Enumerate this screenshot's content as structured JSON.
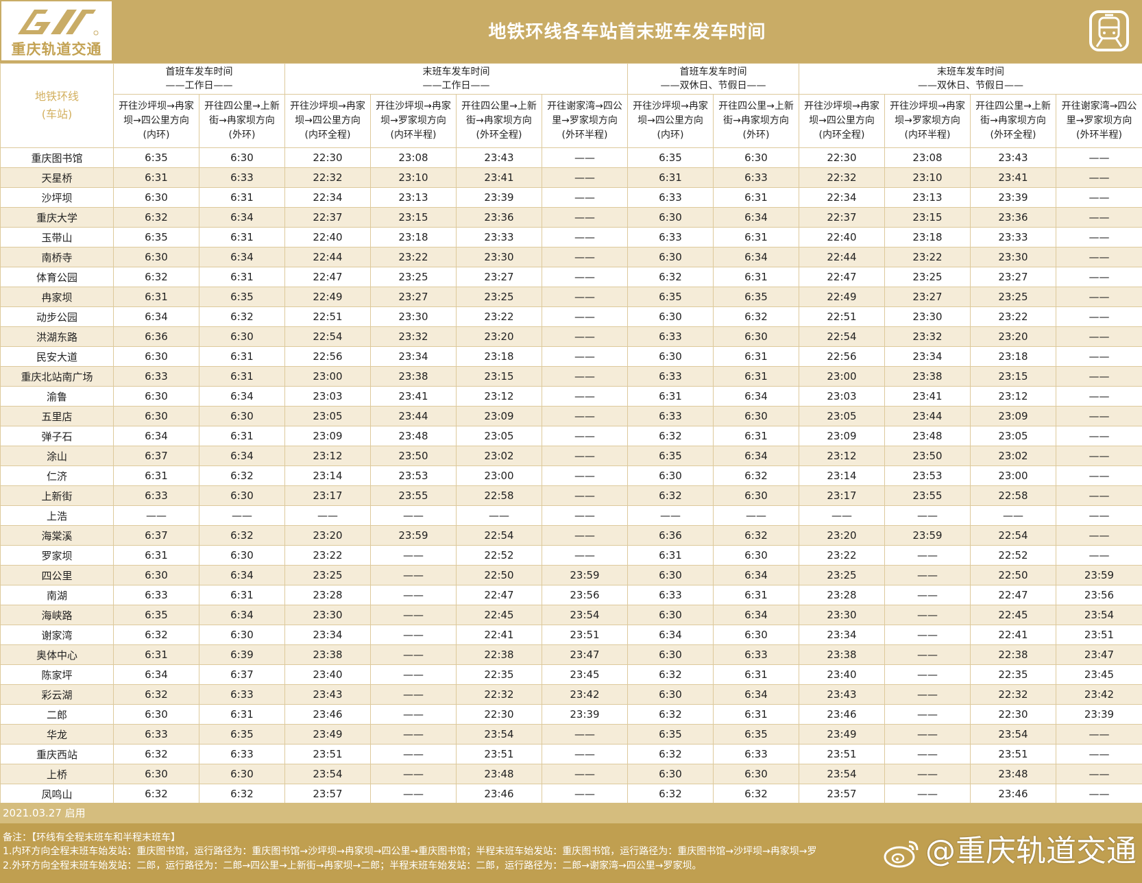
{
  "header": {
    "logo_text": "重庆轨道交通",
    "title": "地铁环线各车站首末班车发车时间"
  },
  "table": {
    "corner": [
      "地铁环线",
      "(车站)"
    ],
    "groups": [
      [
        "首班车发车时间",
        "——工作日——"
      ],
      [
        "末班车发车时间",
        "——工作日——"
      ],
      [
        "首班车发车时间",
        "——双休日、节假日——"
      ],
      [
        "末班车发车时间",
        "——双休日、节假日——"
      ]
    ],
    "columns": [
      [
        "开往沙坪坝→冉家",
        "坝→四公里方向",
        "(内环)"
      ],
      [
        "开往四公里→上新",
        "街→冉家坝方向",
        "(外环)"
      ],
      [
        "开往沙坪坝→冉家",
        "坝→四公里方向",
        "(内环全程)"
      ],
      [
        "开往沙坪坝→冉家",
        "坝→罗家坝方向",
        "(内环半程)"
      ],
      [
        "开往四公里→上新",
        "街→冉家坝方向",
        "(外环全程)"
      ],
      [
        "开往谢家湾→四公",
        "里→罗家坝方向",
        "(外环半程)"
      ],
      [
        "开往沙坪坝→冉家",
        "坝→四公里方向",
        "(内环)"
      ],
      [
        "开往四公里→上新",
        "街→冉家坝方向",
        "(外环)"
      ],
      [
        "开往沙坪坝→冉家",
        "坝→四公里方向",
        "(内环全程)"
      ],
      [
        "开往沙坪坝→冉家",
        "坝→罗家坝方向",
        "(内环半程)"
      ],
      [
        "开往四公里→上新",
        "街→冉家坝方向",
        "(外环全程)"
      ],
      [
        "开往谢家湾→四公",
        "里→罗家坝方向",
        "(外环半程)"
      ]
    ],
    "rows": [
      [
        "重庆图书馆",
        "6:35",
        "6:30",
        "22:30",
        "23:08",
        "23:43",
        "——",
        "6:35",
        "6:30",
        "22:30",
        "23:08",
        "23:43",
        "——"
      ],
      [
        "天星桥",
        "6:31",
        "6:33",
        "22:32",
        "23:10",
        "23:41",
        "——",
        "6:31",
        "6:33",
        "22:32",
        "23:10",
        "23:41",
        "——"
      ],
      [
        "沙坪坝",
        "6:30",
        "6:31",
        "22:34",
        "23:13",
        "23:39",
        "——",
        "6:33",
        "6:31",
        "22:34",
        "23:13",
        "23:39",
        "——"
      ],
      [
        "重庆大学",
        "6:32",
        "6:34",
        "22:37",
        "23:15",
        "23:36",
        "——",
        "6:30",
        "6:34",
        "22:37",
        "23:15",
        "23:36",
        "——"
      ],
      [
        "玉带山",
        "6:35",
        "6:31",
        "22:40",
        "23:18",
        "23:33",
        "——",
        "6:33",
        "6:31",
        "22:40",
        "23:18",
        "23:33",
        "——"
      ],
      [
        "南桥寺",
        "6:30",
        "6:34",
        "22:44",
        "23:22",
        "23:30",
        "——",
        "6:30",
        "6:34",
        "22:44",
        "23:22",
        "23:30",
        "——"
      ],
      [
        "体育公园",
        "6:32",
        "6:31",
        "22:47",
        "23:25",
        "23:27",
        "——",
        "6:32",
        "6:31",
        "22:47",
        "23:25",
        "23:27",
        "——"
      ],
      [
        "冉家坝",
        "6:31",
        "6:35",
        "22:49",
        "23:27",
        "23:25",
        "——",
        "6:35",
        "6:35",
        "22:49",
        "23:27",
        "23:25",
        "——"
      ],
      [
        "动步公园",
        "6:34",
        "6:32",
        "22:51",
        "23:30",
        "23:22",
        "——",
        "6:30",
        "6:32",
        "22:51",
        "23:30",
        "23:22",
        "——"
      ],
      [
        "洪湖东路",
        "6:36",
        "6:30",
        "22:54",
        "23:32",
        "23:20",
        "——",
        "6:33",
        "6:30",
        "22:54",
        "23:32",
        "23:20",
        "——"
      ],
      [
        "民安大道",
        "6:30",
        "6:31",
        "22:56",
        "23:34",
        "23:18",
        "——",
        "6:30",
        "6:31",
        "22:56",
        "23:34",
        "23:18",
        "——"
      ],
      [
        "重庆北站南广场",
        "6:33",
        "6:31",
        "23:00",
        "23:38",
        "23:15",
        "——",
        "6:33",
        "6:31",
        "23:00",
        "23:38",
        "23:15",
        "——"
      ],
      [
        "渝鲁",
        "6:30",
        "6:34",
        "23:03",
        "23:41",
        "23:12",
        "——",
        "6:31",
        "6:34",
        "23:03",
        "23:41",
        "23:12",
        "——"
      ],
      [
        "五里店",
        "6:30",
        "6:30",
        "23:05",
        "23:44",
        "23:09",
        "——",
        "6:33",
        "6:30",
        "23:05",
        "23:44",
        "23:09",
        "——"
      ],
      [
        "弹子石",
        "6:34",
        "6:31",
        "23:09",
        "23:48",
        "23:05",
        "——",
        "6:32",
        "6:31",
        "23:09",
        "23:48",
        "23:05",
        "——"
      ],
      [
        "涂山",
        "6:37",
        "6:34",
        "23:12",
        "23:50",
        "23:02",
        "——",
        "6:35",
        "6:34",
        "23:12",
        "23:50",
        "23:02",
        "——"
      ],
      [
        "仁济",
        "6:31",
        "6:32",
        "23:14",
        "23:53",
        "23:00",
        "——",
        "6:30",
        "6:32",
        "23:14",
        "23:53",
        "23:00",
        "——"
      ],
      [
        "上新街",
        "6:33",
        "6:30",
        "23:17",
        "23:55",
        "22:58",
        "——",
        "6:32",
        "6:30",
        "23:17",
        "23:55",
        "22:58",
        "——"
      ],
      [
        "上浩",
        "——",
        "——",
        "——",
        "——",
        "——",
        "——",
        "——",
        "——",
        "——",
        "——",
        "——",
        "——"
      ],
      [
        "海棠溪",
        "6:37",
        "6:32",
        "23:20",
        "23:59",
        "22:54",
        "——",
        "6:36",
        "6:32",
        "23:20",
        "23:59",
        "22:54",
        "——"
      ],
      [
        "罗家坝",
        "6:31",
        "6:30",
        "23:22",
        "——",
        "22:52",
        "——",
        "6:31",
        "6:30",
        "23:22",
        "——",
        "22:52",
        "——"
      ],
      [
        "四公里",
        "6:30",
        "6:34",
        "23:25",
        "——",
        "22:50",
        "23:59",
        "6:30",
        "6:34",
        "23:25",
        "——",
        "22:50",
        "23:59"
      ],
      [
        "南湖",
        "6:33",
        "6:31",
        "23:28",
        "——",
        "22:47",
        "23:56",
        "6:33",
        "6:31",
        "23:28",
        "——",
        "22:47",
        "23:56"
      ],
      [
        "海峡路",
        "6:35",
        "6:34",
        "23:30",
        "——",
        "22:45",
        "23:54",
        "6:30",
        "6:34",
        "23:30",
        "——",
        "22:45",
        "23:54"
      ],
      [
        "谢家湾",
        "6:32",
        "6:30",
        "23:34",
        "——",
        "22:41",
        "23:51",
        "6:34",
        "6:30",
        "23:34",
        "——",
        "22:41",
        "23:51"
      ],
      [
        "奥体中心",
        "6:31",
        "6:39",
        "23:38",
        "——",
        "22:38",
        "23:47",
        "6:30",
        "6:33",
        "23:38",
        "——",
        "22:38",
        "23:47"
      ],
      [
        "陈家坪",
        "6:34",
        "6:37",
        "23:40",
        "——",
        "22:35",
        "23:45",
        "6:32",
        "6:31",
        "23:40",
        "——",
        "22:35",
        "23:45"
      ],
      [
        "彩云湖",
        "6:32",
        "6:33",
        "23:43",
        "——",
        "22:32",
        "23:42",
        "6:30",
        "6:34",
        "23:43",
        "——",
        "22:32",
        "23:42"
      ],
      [
        "二郎",
        "6:30",
        "6:31",
        "23:46",
        "——",
        "22:30",
        "23:39",
        "6:32",
        "6:31",
        "23:46",
        "——",
        "22:30",
        "23:39"
      ],
      [
        "华龙",
        "6:33",
        "6:35",
        "23:49",
        "——",
        "23:54",
        "——",
        "6:35",
        "6:35",
        "23:49",
        "——",
        "23:54",
        "——"
      ],
      [
        "重庆西站",
        "6:32",
        "6:33",
        "23:51",
        "——",
        "23:51",
        "——",
        "6:32",
        "6:33",
        "23:51",
        "——",
        "23:51",
        "——"
      ],
      [
        "上桥",
        "6:30",
        "6:30",
        "23:54",
        "——",
        "23:48",
        "——",
        "6:30",
        "6:30",
        "23:54",
        "——",
        "23:48",
        "——"
      ],
      [
        "凤鸣山",
        "6:32",
        "6:32",
        "23:57",
        "——",
        "23:46",
        "——",
        "6:32",
        "6:32",
        "23:57",
        "——",
        "23:46",
        "——"
      ]
    ]
  },
  "footer": {
    "date": "2021.03.27 启用",
    "notes": [
      "备注：【环线有全程末班车和半程末班车】",
      "1.内环方向全程末班车始发站：重庆图书馆，运行路径为：重庆图书馆→沙坪坝→冉家坝→四公里→重庆图书馆；半程末班车始发站：重庆图书馆，运行路径为：重庆图书馆→沙坪坝→冉家坝→罗",
      "2.外环方向全程末班车始发站：二郎，运行路径为：二郎→四公里→上新街→冉家坝→二郎；半程末班车始发站：二郎，运行路径为：二郎→谢家湾→四公里→罗家坝。"
    ],
    "watermark": "@重庆轨道交通"
  },
  "icons": {
    "logo": "cq-rail-logo-icon",
    "metro": "metro-train-icon",
    "weibo": "weibo-icon"
  },
  "colors": {
    "gold": "#c9ac66",
    "row_alt": "#f5ecd8",
    "footer_dark": "#c09f50",
    "footer_light": "#d5bd7e",
    "accent_text": "#d3b05f"
  }
}
